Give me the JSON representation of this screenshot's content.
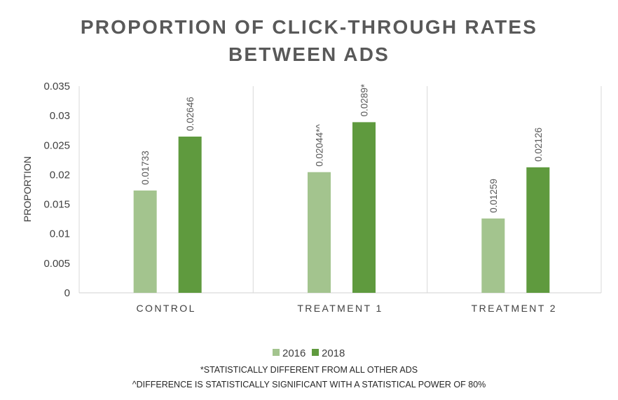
{
  "chart_data": {
    "type": "bar",
    "title_lines": [
      "PROPORTION OF CLICK-THROUGH RATES",
      "BETWEEN ADS"
    ],
    "ylabel": "PROPORTION",
    "xlabel": "",
    "categories": [
      "CONTROL",
      "TREATMENT 1",
      "TREATMENT 2"
    ],
    "series": [
      {
        "name": "2016",
        "color": "#A3C48E",
        "values": [
          0.01733,
          0.02044,
          0.01259
        ],
        "labels": [
          "0.01733",
          "0.02044*^",
          "0.01259"
        ]
      },
      {
        "name": "2018",
        "color": "#5F9A3E",
        "values": [
          0.02646,
          0.0289,
          0.02126
        ],
        "labels": [
          "0.02646",
          "0.0289*",
          "0.02126"
        ]
      }
    ],
    "ylim": [
      0,
      0.035
    ],
    "yticks": [
      "0",
      "0.005",
      "0.01",
      "0.015",
      "0.02",
      "0.025",
      "0.03",
      "0.035"
    ],
    "grid": false,
    "legend_position": "bottom",
    "footnotes": [
      "*STATISTICALLY DIFFERENT FROM ALL OTHER ADS",
      "^DIFFERENCE IS STATISTICALLY SIGNIFICANT WITH A STATISTICAL POWER OF 80%"
    ]
  }
}
